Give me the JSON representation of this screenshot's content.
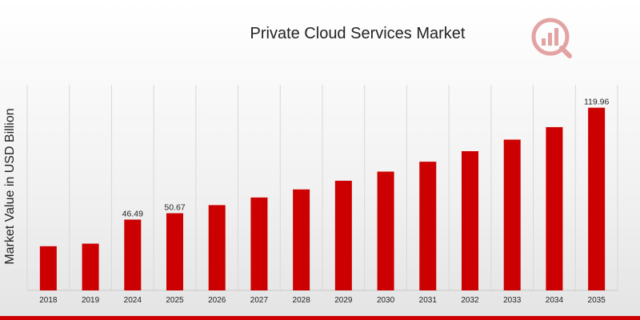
{
  "colors": {
    "bar": "#cc0000",
    "grid": "#d8d8d8",
    "accent": "#cc0000"
  },
  "logo": {
    "icon": "analytics-logo-icon"
  },
  "chart_data": {
    "type": "bar",
    "title": "Private Cloud Services Market",
    "xlabel": "",
    "ylabel": "Market Value in USD Billion",
    "categories": [
      "2018",
      "2019",
      "2024",
      "2025",
      "2026",
      "2027",
      "2028",
      "2029",
      "2030",
      "2031",
      "2032",
      "2033",
      "2034",
      "2035"
    ],
    "values": [
      29.0,
      30.7,
      46.49,
      50.67,
      56.0,
      61.0,
      66.3,
      72.0,
      78.0,
      84.5,
      91.4,
      99.0,
      107.2,
      119.96
    ],
    "data_labels": [
      "",
      "",
      "46.49",
      "50.67",
      "",
      "",
      "",
      "",
      "",
      "",
      "",
      "",
      "",
      "119.96"
    ],
    "ylim": [
      0,
      135
    ],
    "grid": "vertical",
    "legend": "none"
  }
}
